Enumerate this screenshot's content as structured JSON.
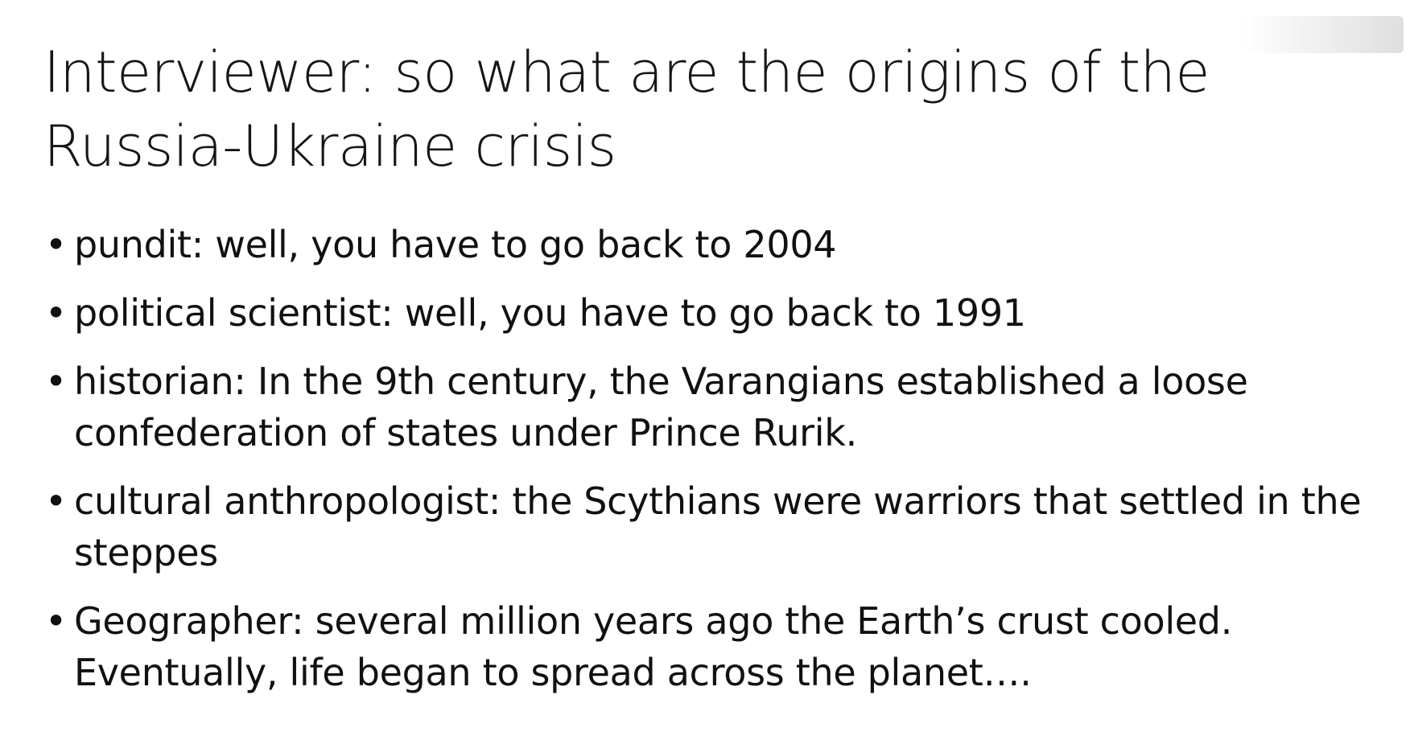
{
  "slide": {
    "title": "Interviewer: so what are the origins of the Russia-Ukraine crisis",
    "bullets": [
      {
        "marker": "•",
        "text": "pundit: well, you have to go back to 2004"
      },
      {
        "marker": "•",
        "text": "political scientist: well, you have to go back to 1991"
      },
      {
        "marker": "•",
        "text": "historian: In the 9th century, the Varangians established a loose confederation of states under Prince Rurik."
      },
      {
        "marker": "•",
        "text": "cultural anthropologist: the Scythians were warriors that settled in the steppes"
      },
      {
        "marker": "•",
        "text": "Geographer: several million years ago the Earth’s crust cooled. Eventually, life began to spread across the planet…."
      }
    ]
  }
}
